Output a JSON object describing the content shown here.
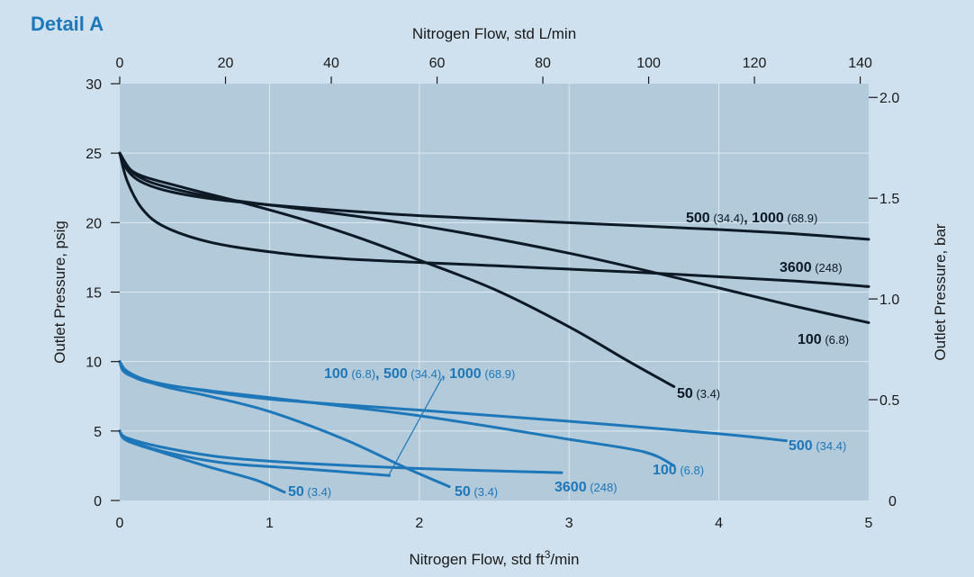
{
  "header": {
    "detail_label": "Detail A"
  },
  "chart_data": {
    "type": "line",
    "title": "",
    "x_bottom": {
      "label": "Nitrogen Flow, std ft",
      "label_sup": "3",
      "label_suffix": "/min",
      "range": [
        0,
        5
      ],
      "ticks": [
        0,
        1,
        2,
        3,
        4,
        5
      ]
    },
    "x_top": {
      "label": "Nitrogen Flow, std L/min",
      "range": [
        0,
        141.6
      ],
      "ticks": [
        0,
        20,
        40,
        60,
        80,
        100,
        120,
        140
      ]
    },
    "y_left": {
      "label": "Outlet Pressure, psig",
      "range": [
        0,
        30
      ],
      "ticks": [
        0,
        5,
        10,
        15,
        20,
        25,
        30
      ]
    },
    "y_right": {
      "label": "Outlet Pressure, bar",
      "range": [
        0,
        2.068
      ],
      "ticks": [
        "0",
        "0.5",
        "1.0",
        "1.5",
        "2.0"
      ],
      "tick_values": [
        0,
        0.5,
        1.0,
        1.5,
        2.0
      ]
    },
    "colors": {
      "plot_bg": "#b2cad9",
      "page_bg": "#cfe1ee",
      "high_curves": "#0d1a26",
      "low_curves": "#1e77b8",
      "grid": "#ddeaf3"
    },
    "series": [
      {
        "group": "high",
        "label_main": "500",
        "label_paren": "(34.4)",
        "label_main2": ", 1000",
        "label_paren2": "(68.9)",
        "points": [
          [
            0,
            25
          ],
          [
            0.05,
            23.8
          ],
          [
            0.15,
            22.9
          ],
          [
            0.35,
            22.2
          ],
          [
            0.7,
            21.6
          ],
          [
            1.2,
            21.1
          ],
          [
            2,
            20.5
          ],
          [
            3,
            20.0
          ],
          [
            4,
            19.5
          ],
          [
            4.5,
            19.2
          ],
          [
            5,
            18.8
          ]
        ]
      },
      {
        "group": "high",
        "label_main": "3600",
        "label_paren": "(248)",
        "points": [
          [
            0,
            25
          ],
          [
            0.05,
            23.0
          ],
          [
            0.15,
            21.0
          ],
          [
            0.3,
            19.7
          ],
          [
            0.6,
            18.6
          ],
          [
            1,
            17.9
          ],
          [
            1.5,
            17.4
          ],
          [
            2.5,
            16.9
          ],
          [
            3.5,
            16.4
          ],
          [
            4.5,
            15.8
          ],
          [
            5,
            15.4
          ]
        ]
      },
      {
        "group": "high",
        "label_main": "100",
        "label_paren": "(6.8)",
        "points": [
          [
            0,
            25
          ],
          [
            0.1,
            23.5
          ],
          [
            0.3,
            22.6
          ],
          [
            0.7,
            21.7
          ],
          [
            1.2,
            21.0
          ],
          [
            2,
            19.8
          ],
          [
            3,
            17.8
          ],
          [
            4,
            15.3
          ],
          [
            4.5,
            14.0
          ],
          [
            5,
            12.8
          ]
        ]
      },
      {
        "group": "high",
        "label_main": "50",
        "label_paren": "(3.4)",
        "points": [
          [
            0,
            25
          ],
          [
            0.1,
            23.6
          ],
          [
            0.4,
            22.6
          ],
          [
            0.8,
            21.5
          ],
          [
            1.2,
            20.3
          ],
          [
            1.6,
            18.9
          ],
          [
            2,
            17.3
          ],
          [
            2.5,
            15.2
          ],
          [
            3,
            12.5
          ],
          [
            3.4,
            10.0
          ],
          [
            3.7,
            8.2
          ]
        ]
      },
      {
        "group": "low",
        "label_main": "500",
        "label_paren": "(34.4)",
        "points": [
          [
            0,
            10
          ],
          [
            0.05,
            9.3
          ],
          [
            0.2,
            8.6
          ],
          [
            0.5,
            8.0
          ],
          [
            1,
            7.3
          ],
          [
            2,
            6.5
          ],
          [
            3,
            5.7
          ],
          [
            4,
            4.8
          ],
          [
            4.45,
            4.3
          ]
        ]
      },
      {
        "group": "low",
        "label_main": "100",
        "label_paren": "(6.8)",
        "points": [
          [
            0,
            10
          ],
          [
            0.05,
            9.2
          ],
          [
            0.2,
            8.5
          ],
          [
            0.6,
            7.9
          ],
          [
            1,
            7.4
          ],
          [
            2,
            6.1
          ],
          [
            3,
            4.4
          ],
          [
            3.5,
            3.5
          ],
          [
            3.7,
            2.5
          ]
        ]
      },
      {
        "group": "low",
        "label_main": "50",
        "label_paren": "(3.4)",
        "points": [
          [
            0,
            10
          ],
          [
            0.05,
            9.1
          ],
          [
            0.3,
            8.2
          ],
          [
            0.6,
            7.5
          ],
          [
            1,
            6.4
          ],
          [
            1.5,
            4.4
          ],
          [
            1.9,
            2.4
          ],
          [
            2.2,
            1.0
          ]
        ]
      },
      {
        "group": "low",
        "label_main": "3600",
        "label_paren": "(248)",
        "points": [
          [
            0,
            5
          ],
          [
            0.05,
            4.5
          ],
          [
            0.3,
            3.8
          ],
          [
            0.7,
            3.1
          ],
          [
            1.2,
            2.7
          ],
          [
            2,
            2.3
          ],
          [
            2.95,
            2.0
          ]
        ]
      },
      {
        "group": "low",
        "label_main": "",
        "label_paren": "",
        "points": [
          [
            0,
            5
          ],
          [
            0.05,
            4.4
          ],
          [
            0.3,
            3.5
          ],
          [
            0.7,
            2.7
          ],
          [
            1.2,
            2.3
          ],
          [
            1.8,
            1.8
          ]
        ]
      },
      {
        "group": "low",
        "label_main": "50",
        "label_paren": "(3.4)",
        "points": [
          [
            0,
            5
          ],
          [
            0.05,
            4.3
          ],
          [
            0.3,
            3.4
          ],
          [
            0.6,
            2.4
          ],
          [
            0.9,
            1.5
          ],
          [
            1.1,
            0.6
          ]
        ]
      }
    ],
    "annotation": {
      "parts": [
        [
          "100",
          " (6.8)"
        ],
        [
          ", 500",
          " (34.4)"
        ],
        [
          ", 1000",
          " (68.9)"
        ]
      ],
      "leader_from": [
        2.15,
        8.8
      ],
      "leader_to": [
        1.8,
        1.9
      ]
    }
  }
}
